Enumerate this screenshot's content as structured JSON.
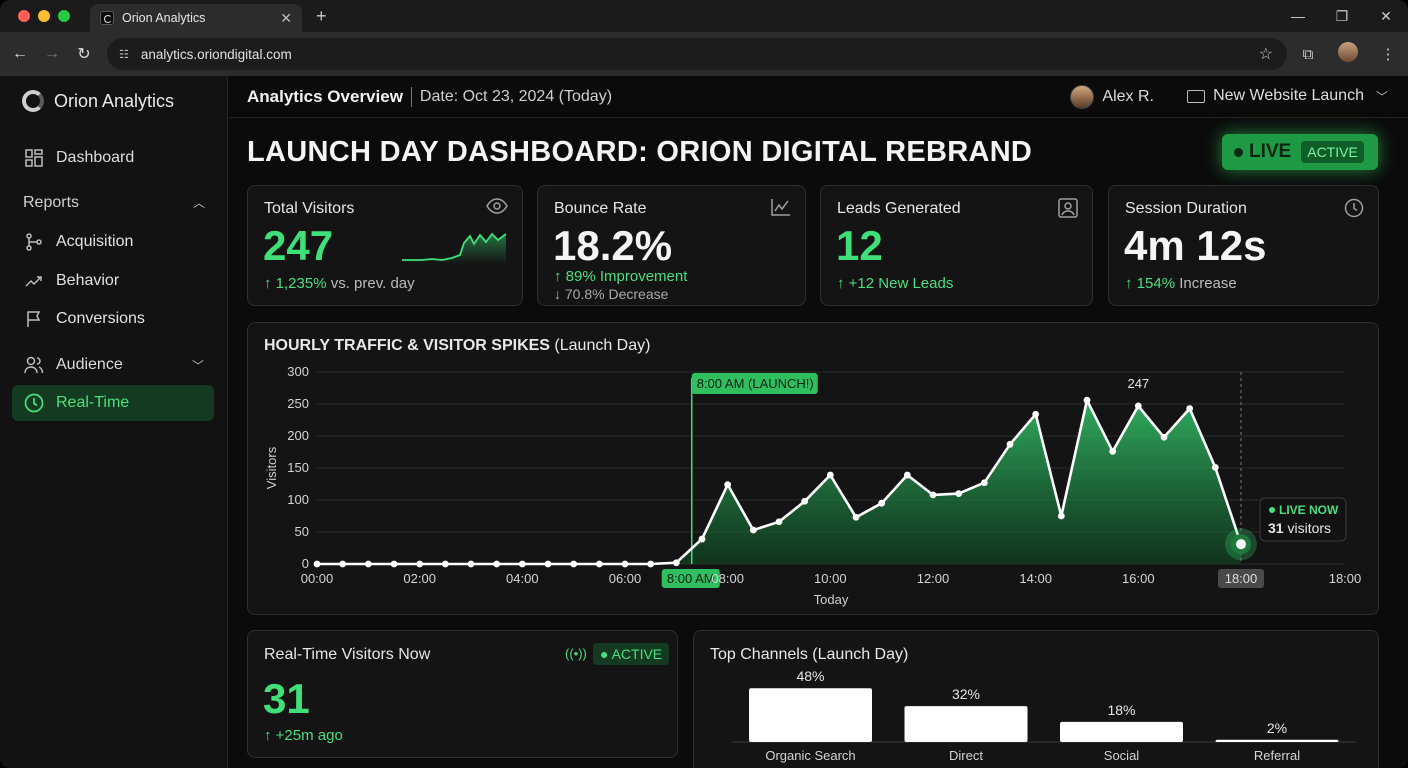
{
  "browser": {
    "tab_title": "Orion Analytics",
    "url": "analytics.oriondigital.com"
  },
  "sidebar": {
    "brand": "Orion Analytics",
    "dashboard": "Dashboard",
    "reports_label": "Reports",
    "reports_items": [
      {
        "label": "Acquisition",
        "icon": "acquisition-icon"
      },
      {
        "label": "Behavior",
        "icon": "trend-icon"
      },
      {
        "label": "Conversions",
        "icon": "flag-icon"
      }
    ],
    "audience_label": "Audience",
    "realtime": "Real-Time"
  },
  "header": {
    "title": "Analytics Overview",
    "date": "Date: Oct 23, 2024 (Today)",
    "user": "Alex R.",
    "project": "New Website Launch"
  },
  "hero": {
    "title": "LAUNCH DAY DASHBOARD: ORION DIGITAL REBRAND",
    "live": "LIVE",
    "active": "ACTIVE"
  },
  "kpis": {
    "visitors": {
      "title": "Total Visitors",
      "value": "247",
      "change": "↑ 1,235%",
      "change_suffix": " vs. prev. day"
    },
    "bounce": {
      "title": "Bounce Rate",
      "value": "18.2%",
      "line1": "↑ 89% Improvement",
      "line2": "↓ 70.8% Decrease"
    },
    "leads": {
      "title": "Leads Generated",
      "value": "12",
      "line1": "↑ +12 New Leads"
    },
    "session": {
      "title": "Session Duration",
      "value": "4m 12s",
      "change": "↑ 154%",
      "change_suffix": " Increase"
    }
  },
  "hourly": {
    "title_bold": "HOURLY TRAFFIC & VISITOR SPIKES",
    "title_rest": " (Launch Day)"
  },
  "realtime_card": {
    "title": "Real-Time Visitors Now",
    "badge": "ACTIVE",
    "value": "31",
    "sub": "↑ +25m ago"
  },
  "channels": {
    "title_main": "Top Channels",
    "title_rest": " (Launch Day)"
  },
  "colors": {
    "accent": "#3fe07a",
    "bg": "#0b0b0b",
    "card": "#141414"
  },
  "chart_data": [
    {
      "type": "area",
      "ylabel": "Visitors",
      "xlabel": "Today",
      "ylim": [
        0,
        300
      ],
      "yticks": [
        0,
        50,
        100,
        150,
        200,
        250,
        300
      ],
      "xticks": [
        "00:00",
        "02:00",
        "04:00",
        "06:00",
        "8:00 AM",
        "08:00",
        "10:00",
        "12:00",
        "14:00",
        "16:00",
        "18:00",
        "18:00"
      ],
      "x": [
        "00:00",
        "00:30",
        "01:00",
        "01:30",
        "02:00",
        "02:30",
        "03:00",
        "03:30",
        "04:00",
        "04:30",
        "05:00",
        "05:30",
        "06:00",
        "06:30",
        "07:00",
        "07:30",
        "08:00",
        "08:30",
        "09:00",
        "09:30",
        "10:00",
        "10:30",
        "11:00",
        "11:30",
        "12:00",
        "12:30",
        "13:00",
        "13:30",
        "14:00",
        "14:30",
        "15:00",
        "15:30",
        "16:00",
        "16:30",
        "17:00",
        "17:30",
        "18:00"
      ],
      "values": [
        0,
        0,
        0,
        0,
        0,
        0,
        0,
        0,
        0,
        0,
        0,
        0,
        0,
        0,
        2,
        39,
        124,
        53,
        66,
        98,
        139,
        73,
        95,
        139,
        108,
        110,
        127,
        187,
        234,
        75,
        256,
        176,
        247,
        198,
        243,
        151,
        31
      ],
      "annotations": {
        "launch": "8:00 AM (LAUNCH!)",
        "peak_label": "247",
        "live_title": "LIVE NOW",
        "live_value": "31",
        "live_unit": " visitors"
      },
      "grid": true
    },
    {
      "type": "bar",
      "categories": [
        "Organic Search",
        "Direct",
        "Social",
        "Referral"
      ],
      "values": [
        48,
        32,
        18,
        2
      ],
      "labels": [
        "48%",
        "32%",
        "18%",
        "2%"
      ],
      "unit": "%"
    }
  ]
}
